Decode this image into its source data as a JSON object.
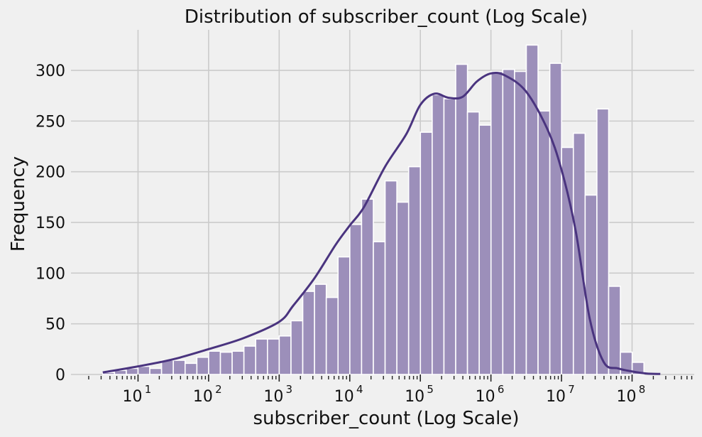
{
  "chart_data": {
    "type": "bar",
    "title": "Distribution of subscriber_count (Log Scale)",
    "xlabel": "subscriber_count (Log Scale)",
    "ylabel": "Frequency",
    "x_scale": "log",
    "grid": true,
    "xlim_log10": [
      0.05,
      8.88
    ],
    "ylim": [
      0,
      340
    ],
    "y_ticks": [
      0,
      50,
      100,
      150,
      200,
      250,
      300
    ],
    "x_tick_labels": [
      {
        "base": "10",
        "exp": "1",
        "value": 10
      },
      {
        "base": "10",
        "exp": "2",
        "value": 100
      },
      {
        "base": "10",
        "exp": "3",
        "value": 1000
      },
      {
        "base": "10",
        "exp": "4",
        "value": 10000
      },
      {
        "base": "10",
        "exp": "5",
        "value": 100000
      },
      {
        "base": "10",
        "exp": "6",
        "value": 1000000
      },
      {
        "base": "10",
        "exp": "7",
        "value": 10000000
      },
      {
        "base": "10",
        "exp": "8",
        "value": 100000000
      }
    ],
    "bins_log10": {
      "start": 0.5,
      "width": 0.1667
    },
    "counts": [
      2,
      4,
      6,
      8,
      6,
      14,
      14,
      11,
      17,
      23,
      22,
      23,
      28,
      35,
      35,
      38,
      53,
      82,
      89,
      76,
      116,
      148,
      173,
      131,
      191,
      170,
      205,
      239,
      276,
      272,
      306,
      259,
      246,
      299,
      301,
      299,
      325,
      260,
      307,
      224,
      238,
      177,
      262,
      87,
      22,
      12
    ],
    "kde": {
      "x_log10": [
        0.5,
        1.0,
        1.5,
        2.0,
        2.5,
        3.0,
        3.2,
        3.5,
        3.8,
        4.0,
        4.2,
        4.5,
        4.8,
        5.0,
        5.2,
        5.4,
        5.6,
        5.8,
        6.0,
        6.2,
        6.5,
        6.8,
        7.0,
        7.2,
        7.4,
        7.6,
        7.8,
        8.0,
        8.2,
        8.4
      ],
      "y": [
        2,
        8,
        15,
        25,
        36,
        52,
        68,
        95,
        128,
        147,
        165,
        205,
        237,
        266,
        277,
        273,
        274,
        289,
        297,
        295,
        279,
        242,
        202,
        142,
        55,
        12,
        6,
        3,
        1,
        0.5
      ]
    },
    "colors": {
      "bar_fill": "#9c8fba",
      "bar_stroke": "#ffffff",
      "kde_line": "#4a347f",
      "grid": "#cbcbcb",
      "background": "#f0f0f0"
    }
  }
}
